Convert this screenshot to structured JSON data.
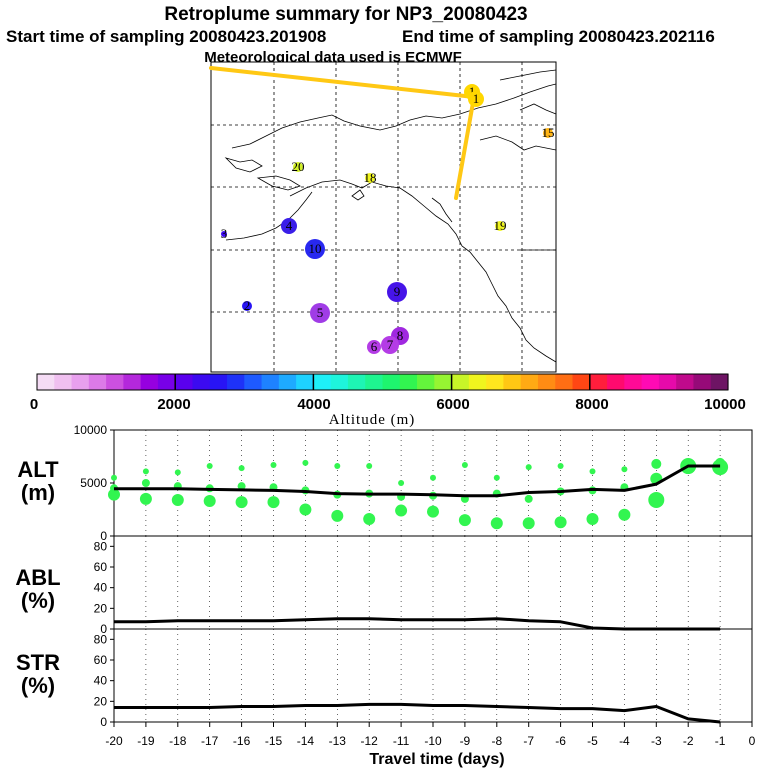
{
  "title": "Retroplume summary for NP3_20080423",
  "start_text": "Start time of sampling 20080423.201908",
  "end_text": "End time of sampling 20080423.202116",
  "met_text": "Meteorological data used is ECMWF",
  "colorbar": {
    "labels": [
      "0",
      "2000",
      "4000",
      "6000",
      "8000",
      "10000"
    ],
    "title": "Altitude (m)",
    "colors": [
      "#f5dcf5",
      "#f0c0f0",
      "#e8a0ee",
      "#dc7ae8",
      "#cc50e0",
      "#b428dc",
      "#9600e0",
      "#7800e8",
      "#5a00ee",
      "#3c0af0",
      "#2814f5",
      "#1e32f8",
      "#1e5aff",
      "#1e82ff",
      "#1eaaff",
      "#1ed2ff",
      "#1ef0f8",
      "#1ef5dc",
      "#1ef5b4",
      "#1ef590",
      "#1ef56e",
      "#32f550",
      "#64f53c",
      "#96f532",
      "#c8f528",
      "#f0f51e",
      "#ffe61e",
      "#ffc814",
      "#ffaa14",
      "#ff8c14",
      "#ff6e14",
      "#ff4614",
      "#ff1e3c",
      "#ff0a6e",
      "#ff0a96",
      "#ff0ab4",
      "#e60aaa",
      "#c00a8c",
      "#960a78",
      "#6e1464"
    ]
  },
  "map": {
    "points": [
      {
        "label": "1",
        "color": "#ffd700"
      },
      {
        "label": "1",
        "color": "#ffd700"
      },
      {
        "label": "20",
        "color": "#d2f028"
      },
      {
        "label": "18",
        "color": "#f0f51e"
      },
      {
        "label": "19",
        "color": "#f0f51e"
      },
      {
        "label": "15",
        "color": "#ffb414"
      },
      {
        "label": "4",
        "color": "#3a1ee8"
      },
      {
        "label": "10",
        "color": "#2828f0"
      },
      {
        "label": "3",
        "color": "#3c0af0"
      },
      {
        "label": "9",
        "color": "#4614e8"
      },
      {
        "label": "5",
        "color": "#a03ce6"
      },
      {
        "label": "8",
        "color": "#a028e0"
      },
      {
        "label": "7",
        "color": "#b43ce6"
      },
      {
        "label": "6",
        "color": "#b43ce6"
      },
      {
        "label": "2",
        "color": "#2814f5"
      }
    ]
  },
  "panels": {
    "alt_label": "ALT",
    "alt_unit": "(m)",
    "abl_label": "ABL",
    "abl_unit": "(%)",
    "str_label": "STR",
    "str_unit": "(%)",
    "xlabel": "Travel time (days)"
  },
  "chart_data": [
    {
      "type": "line",
      "panel": "ALT",
      "ylabel": "ALT (m)",
      "ylim": [
        0,
        10000
      ],
      "yticks": [
        "0",
        "5000",
        "10000"
      ],
      "xlim": [
        -20,
        0
      ],
      "xticks": [
        "-20",
        "-19",
        "-18",
        "-17",
        "-16",
        "-15",
        "-14",
        "-13",
        "-12",
        "-11",
        "-10",
        "-9",
        "-8",
        "-7",
        "-6",
        "-5",
        "-4",
        "-3",
        "-2",
        "-1",
        "0"
      ],
      "x": [
        -20,
        -19,
        -18,
        -17,
        -16,
        -15,
        -14,
        -13,
        -12,
        -11,
        -10,
        -9,
        -8,
        -7,
        -6,
        -5,
        -4,
        -3,
        -2,
        -1
      ],
      "y": [
        4450,
        4450,
        4450,
        4400,
        4350,
        4300,
        4200,
        4000,
        3950,
        3950,
        3900,
        3800,
        3800,
        4100,
        4200,
        4400,
        4300,
        4900,
        6600,
        6600
      ],
      "cluster_color": "#32f550",
      "clusters": [
        {
          "x": -20,
          "alts": [
            5500,
            4500,
            3900
          ]
        },
        {
          "x": -19,
          "alts": [
            6100,
            5000,
            3500
          ]
        },
        {
          "x": -18,
          "alts": [
            6000,
            4700,
            3400
          ]
        },
        {
          "x": -17,
          "alts": [
            6600,
            4500,
            3300
          ]
        },
        {
          "x": -16,
          "alts": [
            6400,
            4700,
            3200
          ]
        },
        {
          "x": -15,
          "alts": [
            6700,
            4600,
            3200
          ]
        },
        {
          "x": -14,
          "alts": [
            6900,
            4300,
            2500
          ]
        },
        {
          "x": -13,
          "alts": [
            6600,
            3900,
            1900
          ]
        },
        {
          "x": -12,
          "alts": [
            6600,
            4000,
            1600
          ]
        },
        {
          "x": -11,
          "alts": [
            5000,
            3700,
            2400
          ]
        },
        {
          "x": -10,
          "alts": [
            5500,
            3800,
            2300
          ]
        },
        {
          "x": -9,
          "alts": [
            6700,
            3500,
            1500
          ]
        },
        {
          "x": -8,
          "alts": [
            5500,
            4000,
            1200
          ]
        },
        {
          "x": -7,
          "alts": [
            6500,
            3500,
            1200
          ]
        },
        {
          "x": -6,
          "alts": [
            6600,
            4200,
            1300
          ]
        },
        {
          "x": -5,
          "alts": [
            6100,
            4300,
            1600
          ]
        },
        {
          "x": -4,
          "alts": [
            6300,
            4600,
            2000
          ]
        },
        {
          "x": -3,
          "alts": [
            6800,
            5400,
            3400
          ]
        },
        {
          "x": -2,
          "alts": [
            6700,
            6700,
            6600
          ]
        },
        {
          "x": -1,
          "alts": [
            6900,
            6700,
            6500
          ]
        }
      ]
    },
    {
      "type": "line",
      "panel": "ABL",
      "ylabel": "ABL (%)",
      "ylim": [
        0,
        90
      ],
      "yticks": [
        "0",
        "20",
        "40",
        "60",
        "80"
      ],
      "xlim": [
        -20,
        0
      ],
      "x": [
        -20,
        -19,
        -18,
        -17,
        -16,
        -15,
        -14,
        -13,
        -12,
        -11,
        -10,
        -9,
        -8,
        -7,
        -6,
        -5,
        -4,
        -3,
        -2,
        -1
      ],
      "y": [
        7,
        7,
        8,
        8,
        8,
        8,
        9,
        10,
        10,
        9,
        9,
        9,
        10,
        8,
        7,
        1,
        0,
        0,
        0,
        0
      ]
    },
    {
      "type": "line",
      "panel": "STR",
      "ylabel": "STR (%)",
      "ylim": [
        0,
        90
      ],
      "yticks": [
        "0",
        "20",
        "40",
        "60",
        "80"
      ],
      "xlim": [
        -20,
        0
      ],
      "x": [
        -20,
        -19,
        -18,
        -17,
        -16,
        -15,
        -14,
        -13,
        -12,
        -11,
        -10,
        -9,
        -8,
        -7,
        -6,
        -5,
        -4,
        -3,
        -2,
        -1
      ],
      "y": [
        14,
        14,
        14,
        14,
        15,
        15,
        16,
        16,
        17,
        17,
        16,
        16,
        15,
        14,
        13,
        13,
        11,
        15,
        3,
        0
      ]
    }
  ]
}
